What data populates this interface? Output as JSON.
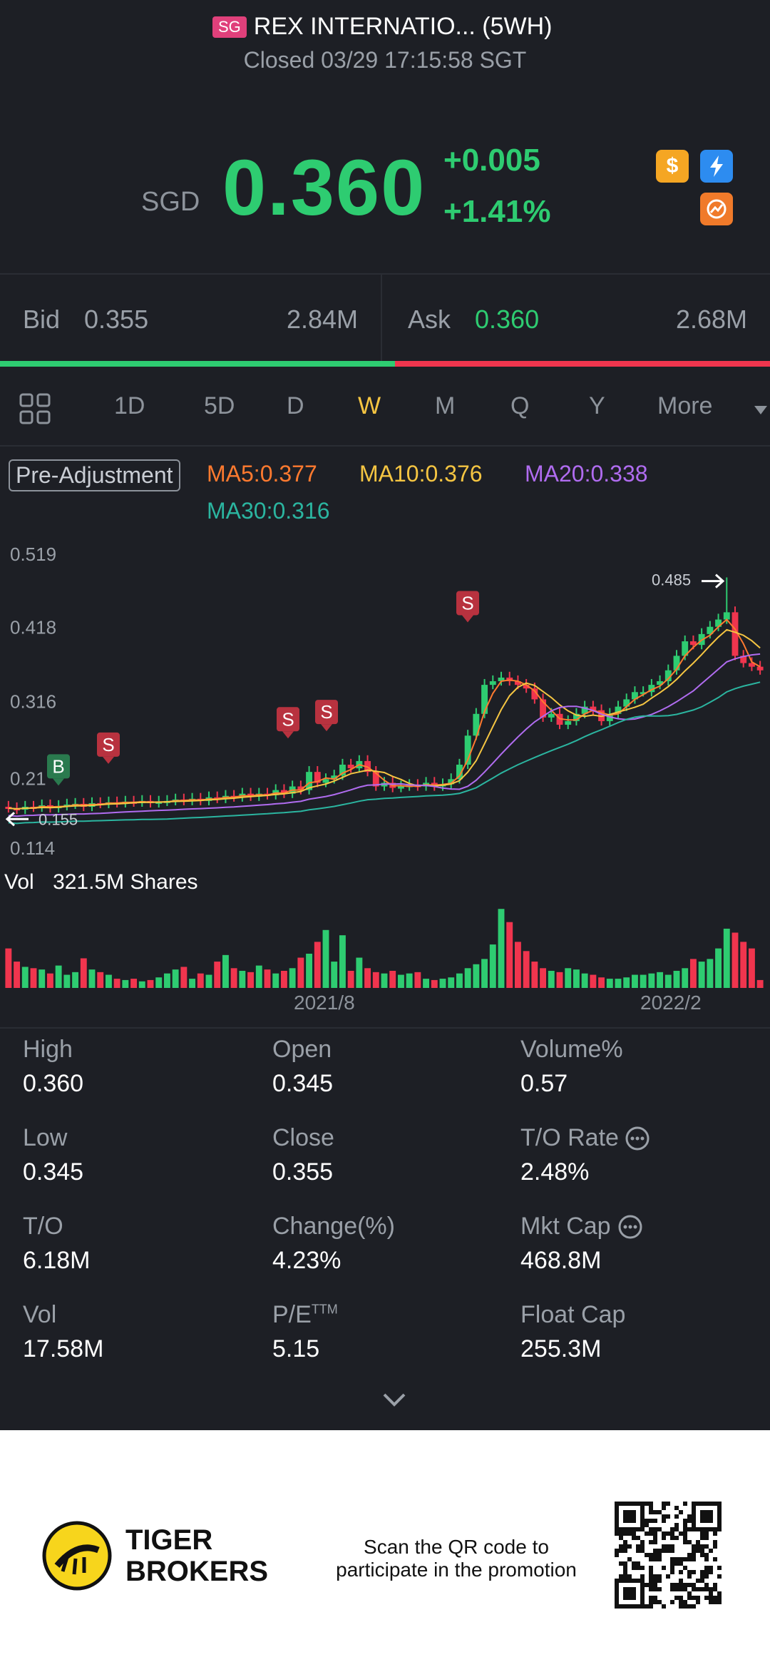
{
  "header": {
    "region_badge": "SG",
    "title": "REX INTERNATIO... (5WH)",
    "status": "Closed 03/29 17:15:58 SGT",
    "currency": "SGD",
    "price": "0.360",
    "change": "+0.005",
    "change_pct": "+1.41%",
    "icons": [
      "dollar-icon",
      "lightning-icon",
      "option-icon"
    ]
  },
  "bidask": {
    "bid_label": "Bid",
    "bid_price": "0.355",
    "bid_size": "2.84M",
    "ask_label": "Ask",
    "ask_price": "0.360",
    "ask_size": "2.68M",
    "bid_ratio": 0.513
  },
  "tabs": {
    "items": [
      "1D",
      "5D",
      "D",
      "W",
      "M",
      "Q",
      "Y",
      "More"
    ],
    "active": "W"
  },
  "indicators": {
    "mode": "Pre-Adjustment",
    "ma5": "MA5:0.377",
    "ma10": "MA10:0.376",
    "ma20": "MA20:0.338",
    "ma30": "MA30:0.316"
  },
  "chart_data": {
    "type": "candlestick",
    "y_ticks": [
      "0.519",
      "0.418",
      "0.316",
      "0.21",
      "0.114"
    ],
    "high_label": "0.485",
    "low_label": "0.155",
    "markers": [
      "B",
      "S",
      "S",
      "S",
      "S"
    ],
    "volume_label": "Vol",
    "volume_value": "321.5M Shares",
    "x_ticks": [
      "2021/8",
      "2022/2"
    ],
    "colors": {
      "up": "#2ecc71",
      "down": "#f0354e",
      "ma5": "#ff7a2f",
      "ma10": "#f5c542",
      "ma20": "#b06cf0",
      "ma30": "#2bb5a0"
    }
  },
  "stats": {
    "high_label": "High",
    "high": "0.360",
    "open_label": "Open",
    "open": "0.345",
    "volpct_label": "Volume%",
    "volpct": "0.57",
    "low_label": "Low",
    "low": "0.345",
    "close_label": "Close",
    "close": "0.355",
    "to_rate_label": "T/O Rate",
    "to_rate": "2.48%",
    "to_label": "T/O",
    "to": "6.18M",
    "chgpct_label": "Change(%)",
    "chgpct": "4.23%",
    "mktcap_label": "Mkt Cap",
    "mktcap": "468.8M",
    "vol_label": "Vol",
    "vol": "17.58M",
    "pe_label": "P/E",
    "pe_sup": "TTM",
    "pe": "5.15",
    "floatcap_label": "Float Cap",
    "floatcap": "255.3M"
  },
  "footer": {
    "brand_line1": "TIGER",
    "brand_line2": "BROKERS",
    "promo_line1": "Scan the QR code to",
    "promo_line2": "participate in the promotion"
  }
}
